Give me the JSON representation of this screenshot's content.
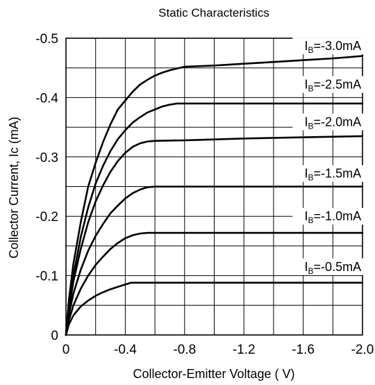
{
  "chart_data": {
    "type": "line",
    "title": "Static Characteristics",
    "xlabel": "Collector-Emitter Voltage ( V)",
    "ylabel": "Collector Current, Ic (mA)",
    "xlim": [
      0,
      -2.0
    ],
    "ylim": [
      0,
      -0.5
    ],
    "x_ticks": [
      0,
      -0.2,
      -0.4,
      -0.6,
      -0.8,
      -1.0,
      -1.2,
      -1.4,
      -1.6,
      -1.8,
      -2.0
    ],
    "x_tick_labels": [
      "0",
      "",
      "-0.4",
      "",
      "-0.8",
      "",
      "-1.2",
      "",
      "-1.6",
      "",
      "-2.0"
    ],
    "y_ticks": [
      0,
      -0.05,
      -0.1,
      -0.15,
      -0.2,
      -0.25,
      -0.3,
      -0.35,
      -0.4,
      -0.45,
      -0.5
    ],
    "y_tick_labels": [
      "0",
      "",
      "-0.1",
      "",
      "-0.2",
      "",
      "-0.3",
      "",
      "-0.4",
      "",
      "-0.5"
    ],
    "grid": true,
    "series": [
      {
        "name": "IB=-3.0mA",
        "label_main": "I",
        "label_sub": "B",
        "label_rest": "=-3.0mA",
        "label_at": [
          -1.8,
          -0.48
        ],
        "x": [
          0,
          -0.02,
          -0.05,
          -0.1,
          -0.15,
          -0.2,
          -0.25,
          -0.3,
          -0.35,
          -0.4,
          -0.45,
          -0.5,
          -0.55,
          -0.6,
          -0.65,
          -0.7,
          -0.8,
          -1.0,
          -1.2,
          -1.4,
          -1.6,
          -1.8,
          -2.0
        ],
        "y": [
          0,
          -0.06,
          -0.12,
          -0.19,
          -0.25,
          -0.29,
          -0.325,
          -0.355,
          -0.38,
          -0.395,
          -0.41,
          -0.422,
          -0.43,
          -0.437,
          -0.442,
          -0.446,
          -0.452,
          -0.454,
          -0.457,
          -0.46,
          -0.463,
          -0.466,
          -0.47
        ]
      },
      {
        "name": "IB=-2.5mA",
        "label_main": "I",
        "label_sub": "B",
        "label_rest": "=-2.5mA",
        "label_at": [
          -1.8,
          -0.415
        ],
        "x": [
          0,
          -0.02,
          -0.05,
          -0.1,
          -0.15,
          -0.2,
          -0.25,
          -0.3,
          -0.35,
          -0.4,
          -0.45,
          -0.5,
          -0.55,
          -0.6,
          -0.65,
          -0.7,
          -0.75,
          -1.0,
          -1.5,
          -2.0
        ],
        "y": [
          0,
          -0.05,
          -0.1,
          -0.165,
          -0.215,
          -0.255,
          -0.285,
          -0.31,
          -0.33,
          -0.345,
          -0.358,
          -0.367,
          -0.375,
          -0.38,
          -0.385,
          -0.388,
          -0.39,
          -0.39,
          -0.39,
          -0.39
        ]
      },
      {
        "name": "IB=-2.0mA",
        "label_main": "I",
        "label_sub": "B",
        "label_rest": "=-2.0mA",
        "label_at": [
          -1.8,
          -0.352
        ],
        "x": [
          0,
          -0.02,
          -0.05,
          -0.1,
          -0.15,
          -0.2,
          -0.25,
          -0.3,
          -0.35,
          -0.4,
          -0.45,
          -0.5,
          -0.55,
          -0.6,
          -0.8,
          -1.2,
          -1.6,
          -2.0
        ],
        "y": [
          0,
          -0.045,
          -0.09,
          -0.145,
          -0.19,
          -0.225,
          -0.252,
          -0.275,
          -0.293,
          -0.307,
          -0.317,
          -0.323,
          -0.326,
          -0.327,
          -0.328,
          -0.331,
          -0.333,
          -0.335
        ]
      },
      {
        "name": "IB=-1.5mA",
        "label_main": "I",
        "label_sub": "B",
        "label_rest": "=-1.5mA",
        "label_at": [
          -1.8,
          -0.265
        ],
        "x": [
          0,
          -0.02,
          -0.05,
          -0.1,
          -0.15,
          -0.2,
          -0.25,
          -0.3,
          -0.35,
          -0.4,
          -0.45,
          -0.5,
          -0.55,
          -0.6,
          -1.0,
          -1.5,
          -2.0
        ],
        "y": [
          0,
          -0.035,
          -0.07,
          -0.11,
          -0.142,
          -0.167,
          -0.187,
          -0.205,
          -0.218,
          -0.23,
          -0.239,
          -0.245,
          -0.249,
          -0.25,
          -0.25,
          -0.25,
          -0.25
        ]
      },
      {
        "name": "IB=-1.0mA",
        "label_main": "I",
        "label_sub": "B",
        "label_rest": "=-1.0mA",
        "label_at": [
          -1.8,
          -0.193
        ],
        "x": [
          0,
          -0.02,
          -0.05,
          -0.1,
          -0.15,
          -0.2,
          -0.25,
          -0.3,
          -0.35,
          -0.4,
          -0.45,
          -0.5,
          -0.55,
          -1.0,
          -1.5,
          -2.0
        ],
        "y": [
          0,
          -0.025,
          -0.05,
          -0.078,
          -0.1,
          -0.118,
          -0.132,
          -0.145,
          -0.155,
          -0.163,
          -0.168,
          -0.171,
          -0.172,
          -0.172,
          -0.172,
          -0.172
        ]
      },
      {
        "name": "IB=-0.5mA",
        "label_main": "I",
        "label_sub": "B",
        "label_rest": "=-0.5mA",
        "label_at": [
          -1.8,
          -0.108
        ],
        "x": [
          0,
          -0.02,
          -0.05,
          -0.1,
          -0.15,
          -0.2,
          -0.25,
          -0.3,
          -0.35,
          -0.4,
          -0.44,
          -1.0,
          -1.5,
          -2.0
        ],
        "y": [
          0,
          -0.018,
          -0.033,
          -0.048,
          -0.058,
          -0.066,
          -0.072,
          -0.077,
          -0.081,
          -0.085,
          -0.088,
          -0.088,
          -0.088,
          -0.088
        ]
      }
    ]
  }
}
